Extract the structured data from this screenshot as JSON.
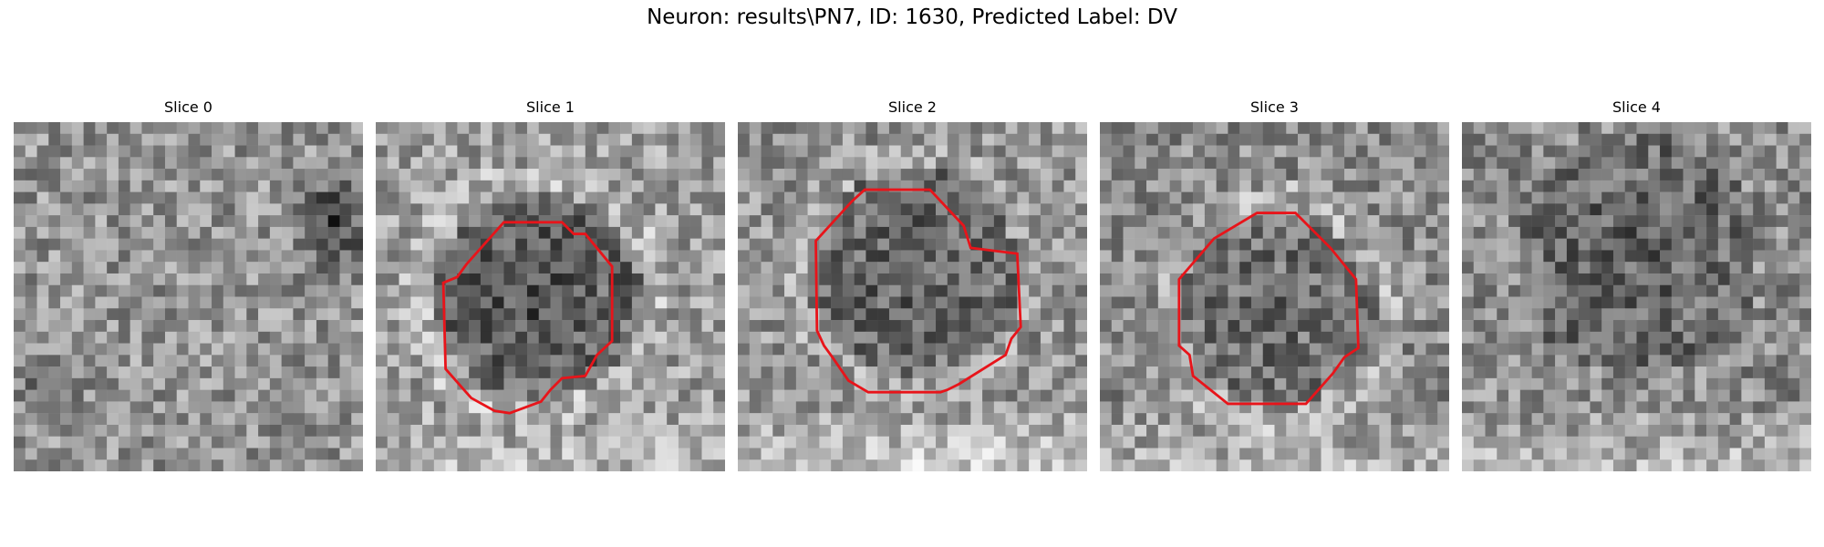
{
  "figure": {
    "title": "Neuron: results\\PN7, ID: 1630, Predicted Label: DV",
    "panels": [
      {
        "title": "Slice 0",
        "has_contour": false
      },
      {
        "title": "Slice 1",
        "has_contour": true
      },
      {
        "title": "Slice 2",
        "has_contour": true
      },
      {
        "title": "Slice 3",
        "has_contour": true
      },
      {
        "title": "Slice 4",
        "has_contour": false
      }
    ],
    "colors": {
      "contour": "#e8141a",
      "background": "#ffffff",
      "text": "#000000"
    }
  }
}
